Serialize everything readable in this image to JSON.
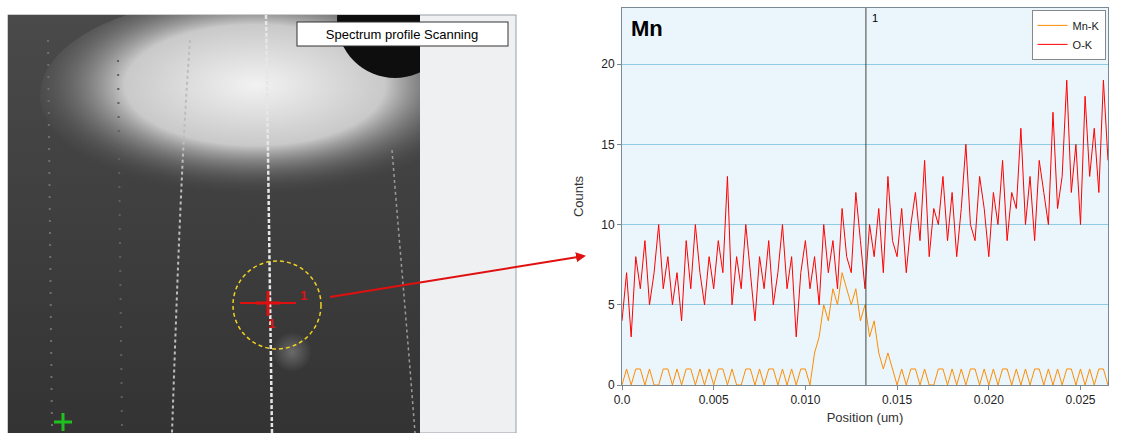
{
  "chart_data": {
    "type": "line",
    "title": "Mn",
    "x_label": "Position (um)",
    "y_label": "Counts",
    "x": [
      0,
      0.00025,
      0.0005,
      0.00075,
      0.001,
      0.00125,
      0.0015,
      0.00175,
      0.002,
      0.00225,
      0.0025,
      0.00275,
      0.003,
      0.00325,
      0.0035,
      0.00375,
      0.004,
      0.00425,
      0.0045,
      0.00475,
      0.005,
      0.00525,
      0.0055,
      0.00575,
      0.006,
      0.00625,
      0.0065,
      0.00675,
      0.007,
      0.00725,
      0.0075,
      0.00775,
      0.008,
      0.00825,
      0.0085,
      0.00875,
      0.009,
      0.00925,
      0.0095,
      0.00975,
      0.01,
      0.01025,
      0.0105,
      0.01075,
      0.011,
      0.01125,
      0.0115,
      0.01175,
      0.012,
      0.01225,
      0.0125,
      0.01275,
      0.013,
      0.01325,
      0.0135,
      0.01375,
      0.014,
      0.01425,
      0.0145,
      0.01475,
      0.015,
      0.01525,
      0.0155,
      0.01575,
      0.016,
      0.01625,
      0.0165,
      0.01675,
      0.017,
      0.01725,
      0.0175,
      0.01775,
      0.018,
      0.01825,
      0.0185,
      0.01875,
      0.019,
      0.01925,
      0.0195,
      0.01975,
      0.02,
      0.02025,
      0.0205,
      0.02075,
      0.021,
      0.02125,
      0.0215,
      0.02175,
      0.022,
      0.02225,
      0.0225,
      0.02275,
      0.023,
      0.02325,
      0.0235,
      0.02375,
      0.024,
      0.02425,
      0.0245,
      0.02475,
      0.025,
      0.02525,
      0.0255,
      0.02575,
      0.026,
      0.02625,
      0.0265
    ],
    "series": [
      {
        "name": "Mn-K",
        "color": "#ff8c00",
        "values": [
          0,
          1,
          0,
          1,
          1,
          0,
          1,
          0,
          0,
          1,
          1,
          0,
          1,
          0,
          1,
          1,
          0,
          1,
          0,
          1,
          0,
          1,
          1,
          0,
          1,
          0,
          0,
          1,
          1,
          0,
          1,
          0,
          1,
          1,
          0,
          1,
          0,
          1,
          0,
          1,
          1,
          0,
          2,
          3,
          5,
          4,
          6,
          5,
          7,
          6,
          5,
          6,
          4,
          5,
          3,
          4,
          2,
          1,
          2,
          1,
          0,
          1,
          0,
          1,
          1,
          0,
          1,
          0,
          0,
          1,
          1,
          0,
          1,
          0,
          1,
          0,
          1,
          1,
          0,
          1,
          0,
          1,
          0,
          1,
          1,
          0,
          1,
          0,
          1,
          0,
          1,
          1,
          0,
          1,
          0,
          1,
          0,
          1,
          1,
          0,
          1,
          0,
          1,
          0,
          1,
          1,
          0
        ]
      },
      {
        "name": "O-K",
        "color": "#ff0000",
        "values": [
          4,
          7,
          3,
          8,
          6,
          9,
          5,
          7,
          10,
          6,
          8,
          5,
          7,
          4,
          9,
          6,
          10,
          7,
          5,
          8,
          6,
          9,
          7,
          13,
          5,
          8,
          6,
          10,
          7,
          4,
          8,
          6,
          9,
          5,
          7,
          10,
          6,
          8,
          3,
          7,
          9,
          6,
          8,
          5,
          10,
          7,
          9,
          6,
          11,
          8,
          7,
          12,
          9,
          6,
          10,
          8,
          11,
          7,
          13,
          9,
          8,
          11,
          7,
          10,
          12,
          9,
          14,
          8,
          11,
          10,
          13,
          9,
          12,
          8,
          11,
          15,
          10,
          9,
          13,
          11,
          8,
          12,
          10,
          14,
          9,
          12,
          11,
          16,
          10,
          13,
          9,
          14,
          12,
          10,
          17,
          11,
          13,
          19,
          12,
          15,
          10,
          18,
          13,
          16,
          12,
          19,
          14
        ]
      }
    ],
    "xlim": [
      0,
      0.0265
    ],
    "xticks": [
      {
        "value": 0,
        "label": "0.0"
      },
      0.005,
      {
        "value": 0.01,
        "label": "0.010"
      },
      0.015,
      {
        "value": 0.02,
        "label": "0.020"
      },
      0.025
    ],
    "ylim": [
      0,
      23.5
    ],
    "yticks": [
      0,
      5,
      10,
      15,
      20
    ],
    "grid": true,
    "legend": "top-right",
    "cursor": {
      "x": 0.0133,
      "label": "1"
    }
  },
  "image_panel": {
    "label": "Spectrum profile Scanning",
    "marker_labels": [
      "1",
      "1"
    ]
  }
}
